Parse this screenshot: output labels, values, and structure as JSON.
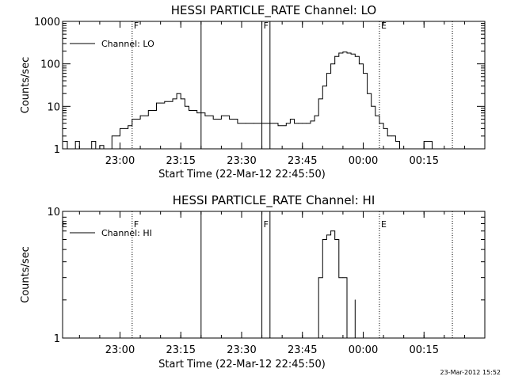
{
  "timestamp": "23-Mar-2012 15:52",
  "chart_data": [
    {
      "type": "line",
      "title": "HESSI PARTICLE_RATE Channel: LO",
      "xlabel": "Start Time (22-Mar-12 22:45:50)",
      "ylabel": "Counts/sec",
      "yscale": "log",
      "ylim": [
        1,
        1000
      ],
      "xlim": [
        "22:45:50",
        "00:30:00"
      ],
      "x_ticks": [
        "23:00",
        "23:15",
        "23:30",
        "23:45",
        "00:00",
        "00:15"
      ],
      "y_ticks": [
        "1",
        "10",
        "100",
        "1000"
      ],
      "legend": {
        "label": "Channel: LO",
        "position": "top-left"
      },
      "markers": [
        {
          "time": "23:03",
          "label": "F",
          "style": "dotted"
        },
        {
          "time": "23:20",
          "label": "",
          "style": "solid"
        },
        {
          "time": "23:35",
          "label": "F",
          "style": "solid"
        },
        {
          "time": "23:37",
          "label": "",
          "style": "solid"
        },
        {
          "time": "00:04",
          "label": "E",
          "style": "dotted"
        },
        {
          "time": "00:22",
          "label": "",
          "style": "dotted"
        }
      ],
      "series": [
        {
          "x": [
            "22:46",
            "22:47",
            "22:48",
            "22:49",
            "22:50",
            "22:51",
            "22:52",
            "22:53",
            "22:54",
            "22:55",
            "22:56",
            "22:57",
            "22:58",
            "22:59",
            "23:00",
            "23:01",
            "23:02",
            "23:03",
            "23:05",
            "23:07",
            "23:09",
            "23:11",
            "23:13",
            "23:14",
            "23:15",
            "23:16",
            "23:17",
            "23:19",
            "23:21",
            "23:23",
            "23:25",
            "23:27",
            "23:29",
            "23:31",
            "23:33",
            "23:35",
            "23:37",
            "23:39",
            "23:41",
            "23:42",
            "23:43",
            "23:44",
            "23:45",
            "23:46",
            "23:47",
            "23:48",
            "23:49",
            "23:50",
            "23:51",
            "23:52",
            "23:53",
            "23:54",
            "23:55",
            "23:56",
            "23:57",
            "23:58",
            "23:59",
            "00:00",
            "00:01",
            "00:02",
            "00:03",
            "00:04",
            "00:05",
            "00:06",
            "00:07",
            "00:08",
            "00:09",
            "00:10",
            "00:11",
            "00:13",
            "00:15",
            "00:17",
            "00:19",
            "00:21",
            "00:23",
            "00:25",
            "00:27",
            "00:29"
          ],
          "y": [
            1.5,
            1,
            1,
            1.5,
            1,
            1,
            1,
            1.5,
            1,
            1.2,
            1,
            1,
            2,
            2,
            3,
            3,
            3.5,
            5,
            6,
            8,
            12,
            13,
            15,
            20,
            15,
            10,
            8,
            7,
            6,
            5,
            6,
            5,
            4,
            4,
            4,
            4,
            4,
            3.5,
            4,
            5,
            4,
            4,
            4,
            4,
            4.5,
            6,
            15,
            30,
            60,
            100,
            150,
            180,
            190,
            180,
            170,
            150,
            100,
            60,
            20,
            10,
            6,
            4,
            3,
            2,
            2,
            1.5,
            1,
            1,
            1,
            1,
            1.5,
            1,
            1,
            1,
            1,
            1,
            1,
            1
          ]
        }
      ]
    },
    {
      "type": "line",
      "title": "HESSI PARTICLE_RATE Channel: HI",
      "xlabel": "Start Time (22-Mar-12 22:45:50)",
      "ylabel": "Counts/sec",
      "yscale": "log",
      "ylim": [
        1,
        10
      ],
      "xlim": [
        "22:45:50",
        "00:30:00"
      ],
      "x_ticks": [
        "23:00",
        "23:15",
        "23:30",
        "23:45",
        "00:00",
        "00:15"
      ],
      "y_ticks": [
        "1",
        "10"
      ],
      "legend": {
        "label": "Channel: HI",
        "position": "top-left"
      },
      "markers": [
        {
          "time": "22:46",
          "label": "E",
          "style": "none"
        },
        {
          "time": "23:03",
          "label": "F",
          "style": "dotted"
        },
        {
          "time": "23:20",
          "label": "",
          "style": "solid"
        },
        {
          "time": "23:35",
          "label": "F",
          "style": "solid"
        },
        {
          "time": "23:37",
          "label": "",
          "style": "solid"
        },
        {
          "time": "00:04",
          "label": "E",
          "style": "dotted"
        },
        {
          "time": "00:22",
          "label": "",
          "style": "dotted"
        }
      ],
      "series": [
        {
          "x": [
            "23:48",
            "23:49",
            "23:50",
            "23:51",
            "23:52",
            "23:53",
            "23:54",
            "23:55",
            "23:56",
            "23:56",
            "23:57",
            "23:58",
            "23:58"
          ],
          "y": [
            1,
            3,
            6,
            6.5,
            7,
            6,
            3,
            3,
            2.5,
            1,
            1,
            2,
            1
          ]
        }
      ]
    }
  ]
}
